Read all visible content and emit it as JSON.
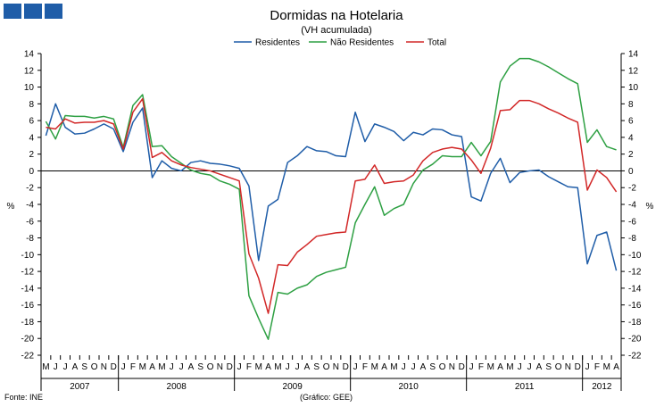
{
  "header": {
    "title": "Dormidas na Hotelaria",
    "subtitle": "(VH acumulada)",
    "source": "Fonte: INE",
    "credit": "(Gráfico: GEE)",
    "unit_left": "%",
    "unit_right": "%"
  },
  "chart_data": {
    "type": "line",
    "title": "Dormidas na Hotelaria",
    "subtitle": "(VH acumulada)",
    "ylim": [
      -22,
      14
    ],
    "yticks": [
      14,
      12,
      10,
      8,
      6,
      4,
      2,
      0,
      -2,
      -4,
      -6,
      -8,
      -10,
      -12,
      -14,
      -16,
      -18,
      -20,
      -22
    ],
    "legend_position": "top",
    "months": [
      "M",
      "J",
      "J",
      "A",
      "S",
      "O",
      "N",
      "D",
      "J",
      "F",
      "M",
      "A",
      "M",
      "J",
      "J",
      "A",
      "S",
      "O",
      "N",
      "D",
      "J",
      "F",
      "M",
      "A",
      "M",
      "J",
      "J",
      "A",
      "S",
      "O",
      "N",
      "D",
      "J",
      "F",
      "M",
      "A",
      "M",
      "J",
      "J",
      "A",
      "S",
      "O",
      "N",
      "D",
      "J",
      "F",
      "M",
      "A",
      "M",
      "J",
      "J",
      "A",
      "S",
      "O",
      "N",
      "D",
      "J",
      "F",
      "M",
      "A"
    ],
    "years": [
      {
        "label": "2007",
        "start": 0,
        "count": 8
      },
      {
        "label": "2008",
        "start": 8,
        "count": 12
      },
      {
        "label": "2009",
        "start": 20,
        "count": 12
      },
      {
        "label": "2010",
        "start": 32,
        "count": 12
      },
      {
        "label": "2011",
        "start": 44,
        "count": 12
      },
      {
        "label": "2012",
        "start": 56,
        "count": 4
      }
    ],
    "series": [
      {
        "name": "Residentes",
        "color": "#1F5DA8",
        "values": [
          4.2,
          8.0,
          5.2,
          4.4,
          4.5,
          5.0,
          5.6,
          5.0,
          2.3,
          5.8,
          7.5,
          -0.8,
          1.2,
          0.3,
          0.0,
          1.0,
          1.2,
          0.9,
          0.8,
          0.6,
          0.3,
          -1.8,
          -10.7,
          -4.2,
          -3.4,
          1.0,
          1.8,
          2.9,
          2.4,
          2.3,
          1.8,
          1.7,
          7.0,
          3.5,
          5.6,
          5.2,
          4.7,
          3.6,
          4.6,
          4.3,
          5.0,
          4.9,
          4.3,
          4.1,
          -3.1,
          -3.6,
          -0.3,
          1.5,
          -1.4,
          -0.2,
          0.0,
          0.1,
          -0.7,
          -1.3,
          -1.9,
          -2.0,
          -11.1,
          -7.7,
          -7.3,
          -11.9
        ]
      },
      {
        "name": "Não Residentes",
        "color": "#2EA043",
        "values": [
          5.9,
          3.8,
          6.6,
          6.5,
          6.5,
          6.3,
          6.5,
          6.2,
          2.8,
          7.8,
          9.1,
          2.9,
          3.0,
          1.7,
          0.9,
          0.1,
          -0.3,
          -0.5,
          -1.2,
          -1.6,
          -2.2,
          -14.9,
          -17.6,
          -20.1,
          -14.5,
          -14.7,
          -14.0,
          -13.6,
          -12.6,
          -12.1,
          -11.8,
          -11.5,
          -6.2,
          -4.0,
          -1.9,
          -5.3,
          -4.5,
          -4.0,
          -1.5,
          0.1,
          0.8,
          1.8,
          1.7,
          1.7,
          3.4,
          1.8,
          3.5,
          10.6,
          12.5,
          13.4,
          13.4,
          13.0,
          12.4,
          11.7,
          11.0,
          10.4,
          3.4,
          4.9,
          2.9,
          2.5
        ]
      },
      {
        "name": "Total",
        "color": "#D22828",
        "values": [
          5.2,
          5.0,
          6.2,
          5.7,
          5.8,
          5.8,
          6.0,
          5.6,
          2.6,
          7.0,
          8.6,
          1.6,
          2.2,
          1.2,
          0.7,
          0.4,
          0.2,
          0.0,
          -0.4,
          -0.8,
          -1.2,
          -9.9,
          -12.8,
          -17.0,
          -11.2,
          -11.3,
          -9.7,
          -8.8,
          -7.8,
          -7.6,
          -7.4,
          -7.3,
          -1.2,
          -1.0,
          0.7,
          -1.5,
          -1.3,
          -1.2,
          -0.5,
          1.2,
          2.2,
          2.6,
          2.8,
          2.6,
          1.3,
          -0.3,
          2.7,
          7.2,
          7.3,
          8.4,
          8.4,
          8.0,
          7.4,
          6.9,
          6.3,
          5.8,
          -2.3,
          0.1,
          -0.8,
          -2.5
        ]
      }
    ]
  }
}
